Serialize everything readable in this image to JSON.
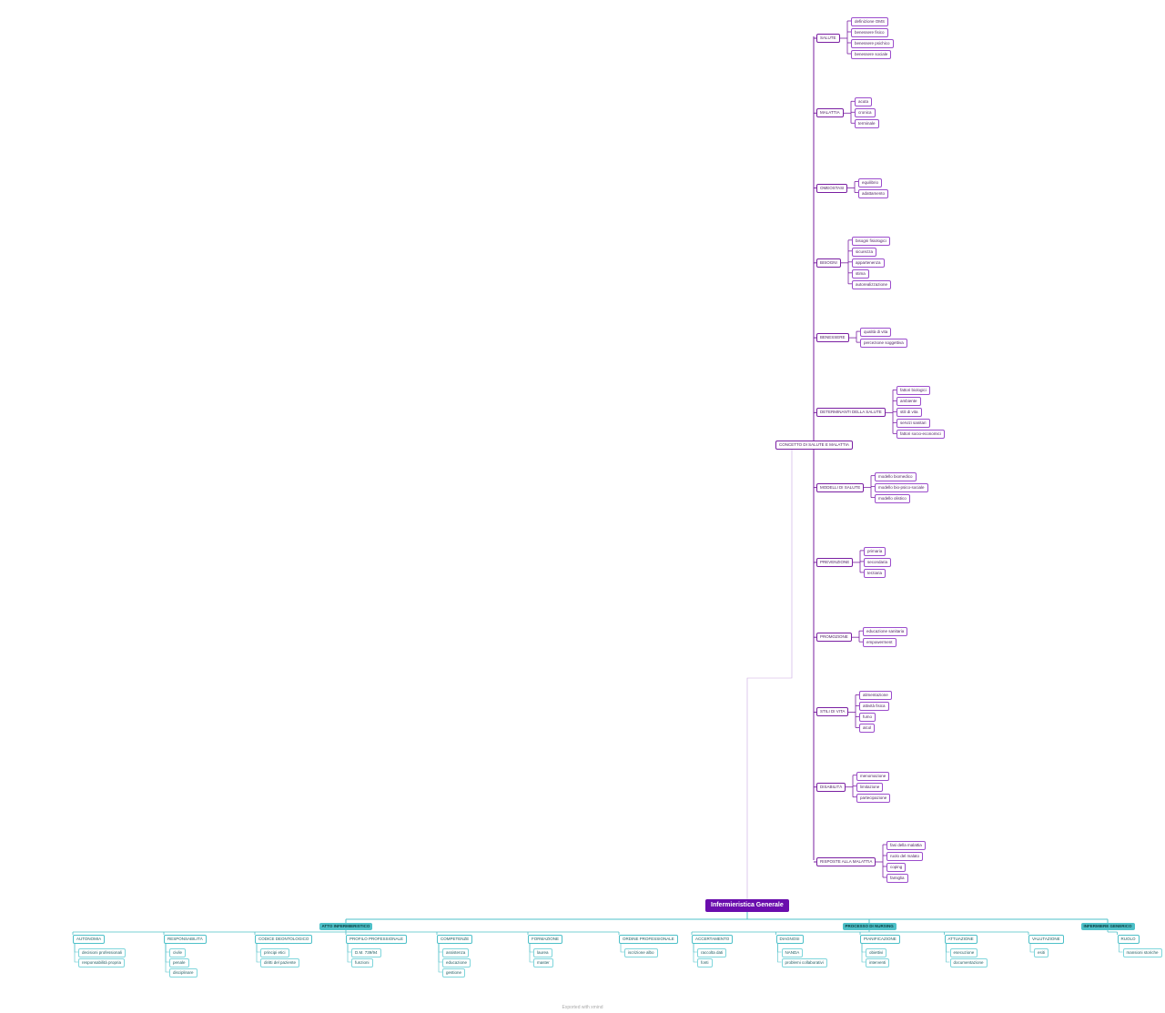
{
  "tree": {
    "root": "Infermieristica Generale",
    "concept": {
      "label": "CONCETTO DI SALUTE E MALATTIA",
      "children": [
        {
          "label": "SALUTE",
          "children": [
            "definizione OMS",
            "benessere fisico",
            "benessere psichico",
            "benessere sociale"
          ]
        },
        {
          "label": "MALATTIA",
          "children": [
            "acuta",
            "cronica",
            "terminale"
          ]
        },
        {
          "label": "OMEOSTASI",
          "children": [
            "equilibrio",
            "adattamento"
          ]
        },
        {
          "label": "BISOGNI",
          "children": [
            "bisogni fisiologici",
            "sicurezza",
            "appartenenza",
            "stima",
            "autorealizzazione"
          ]
        },
        {
          "label": "BENESSERE",
          "children": [
            "qualità di vita",
            "percezione soggettiva"
          ]
        },
        {
          "label": "DETERMINANTI DELLA SALUTE",
          "children": [
            "fattori biologici",
            "ambiente",
            "stili di vita",
            "servizi sanitari",
            "fattori socio-economici"
          ]
        },
        {
          "label": "MODELLI DI SALUTE",
          "children": [
            "modello biomedico",
            "modello bio-psico-sociale",
            "modello olistico"
          ]
        },
        {
          "label": "PREVENZIONE",
          "children": [
            "primaria",
            "secondaria",
            "terziaria"
          ]
        },
        {
          "label": "PROMOZIONE",
          "children": [
            "educazione sanitaria",
            "empowerment"
          ]
        },
        {
          "label": "STILI DI VITA",
          "children": [
            "alimentazione",
            "attività fisica",
            "fumo",
            "alcol"
          ]
        },
        {
          "label": "DISABILITÀ",
          "children": [
            "menomazione",
            "limitazione",
            "partecipazione"
          ]
        },
        {
          "label": "RISPOSTE ALLA MALATTIA",
          "children": [
            "fasi della malattia",
            "ruolo del malato",
            "coping",
            "famiglia"
          ]
        }
      ]
    },
    "branches": [
      {
        "label": "ATTO INFERMIERISTICO",
        "children": [
          {
            "label": "AUTONOMIA",
            "children": [
              "decisioni professionali",
              "responsabilità propria"
            ]
          },
          {
            "label": "RESPONSABILITÀ",
            "children": [
              "civile",
              "penale",
              "disciplinare"
            ]
          },
          {
            "label": "CODICE DEONTOLOGICO",
            "children": [
              "principi etici",
              "diritti del paziente"
            ]
          },
          {
            "label": "PROFILO PROFESSIONALE",
            "children": [
              "D.M. 739/94",
              "funzioni"
            ]
          },
          {
            "label": "COMPETENZE",
            "children": [
              "assistenza",
              "educazione",
              "gestione"
            ]
          },
          {
            "label": "FORMAZIONE",
            "children": [
              "laurea",
              "master"
            ]
          },
          {
            "label": "ORDINE PROFESSIONALE",
            "children": [
              "iscrizione albo"
            ]
          }
        ]
      },
      {
        "label": "PROCESSO DI NURSING",
        "children": [
          {
            "label": "ACCERTAMENTO",
            "children": [
              "raccolta dati",
              "fonti"
            ]
          },
          {
            "label": "DIAGNOSI",
            "children": [
              "NANDA",
              "problemi collaborativi"
            ]
          },
          {
            "label": "PIANIFICAZIONE",
            "children": [
              "obiettivi",
              "interventi"
            ]
          },
          {
            "label": "ATTUAZIONE",
            "children": [
              "esecuzione",
              "documentazione"
            ]
          },
          {
            "label": "VALUTAZIONE",
            "children": [
              "esiti"
            ]
          }
        ]
      },
      {
        "label": "INFERMIERE GENERICO",
        "children": [
          {
            "label": "RUOLO",
            "children": [
              "mansioni storiche"
            ]
          }
        ]
      }
    ]
  },
  "footer": "Exported with xmind"
}
